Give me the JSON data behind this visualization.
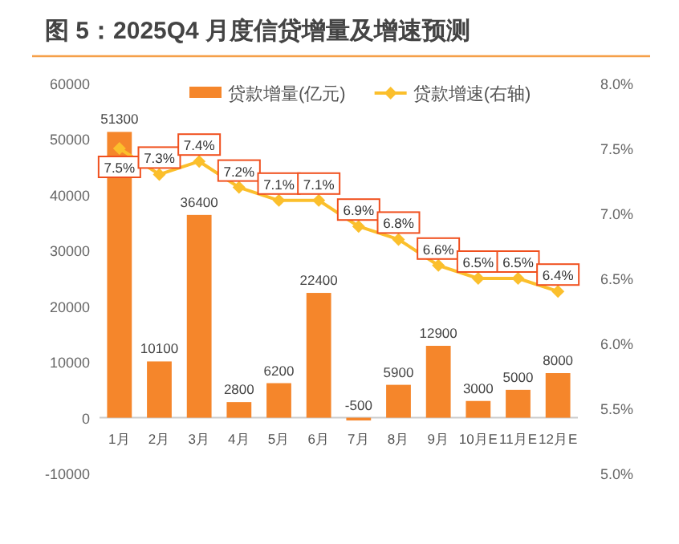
{
  "chart_data": {
    "type": "bar",
    "title": "图 5：2025Q4 月度信贷增量及增速预测",
    "categories": [
      "1月",
      "2月",
      "3月",
      "4月",
      "5月",
      "6月",
      "7月",
      "8月",
      "9月",
      "10月E",
      "11月E",
      "12月E"
    ],
    "series": [
      {
        "name": "贷款增量(亿元)",
        "color": "#f5862b",
        "values": [
          51300,
          10100,
          36400,
          2800,
          6200,
          22400,
          -500,
          5900,
          12900,
          3000,
          5000,
          8000
        ],
        "value_labels": [
          "51300",
          "10100",
          "36400",
          "2800",
          "6200",
          "22400",
          "-500",
          "5900",
          "12900",
          "3000",
          "5000",
          "8000"
        ]
      },
      {
        "name": "贷款增速(右轴)",
        "type": "line",
        "axis": "y2",
        "color": "#fbbf2c",
        "values": [
          7.5,
          7.3,
          7.4,
          7.2,
          7.1,
          7.1,
          6.9,
          6.8,
          6.6,
          6.5,
          6.5,
          6.4
        ],
        "value_labels": [
          "7.5%",
          "7.3%",
          "7.4%",
          "7.2%",
          "7.1%",
          "7.1%",
          "6.9%",
          "6.8%",
          "6.6%",
          "6.5%",
          "6.5%",
          "6.4%"
        ]
      }
    ],
    "ylim": [
      -10000,
      60000
    ],
    "yticks": [
      -10000,
      0,
      10000,
      20000,
      30000,
      40000,
      50000,
      60000
    ],
    "y2lim": [
      5,
      8
    ],
    "y2ticks": [
      {
        "value": 5,
        "label": "5.0%"
      },
      {
        "value": 5.5,
        "label": "5.5%"
      },
      {
        "value": 6,
        "label": "6.0%"
      },
      {
        "value": 6.5,
        "label": "6.5%"
      },
      {
        "value": 7,
        "label": "7.0%"
      },
      {
        "value": 7.5,
        "label": "7.5%"
      },
      {
        "value": 8,
        "label": "8.0%"
      }
    ],
    "marker": "diamond",
    "legend": "top"
  }
}
